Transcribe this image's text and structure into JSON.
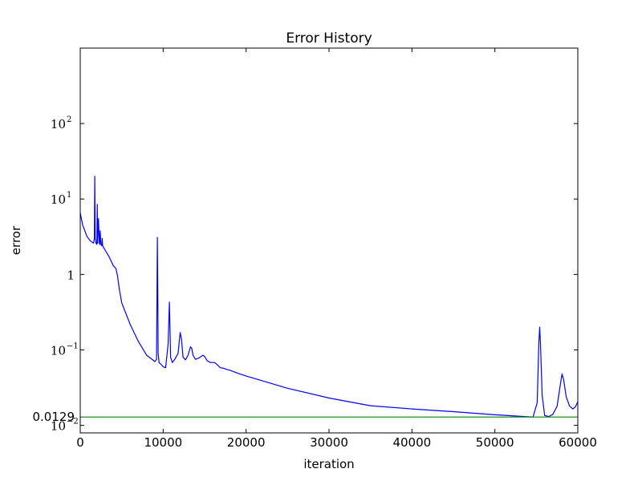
{
  "chart_data": {
    "type": "line",
    "title": "Error History",
    "xlabel": "iteration",
    "ylabel": "error",
    "xlim": [
      0,
      60000
    ],
    "ylim_log10": [
      -2.1,
      3.0
    ],
    "y_scale": "log",
    "grid": false,
    "x_ticks": [
      {
        "value": 0,
        "label": "0"
      },
      {
        "value": 10000,
        "label": "10000"
      },
      {
        "value": 20000,
        "label": "20000"
      },
      {
        "value": 30000,
        "label": "30000"
      },
      {
        "value": 40000,
        "label": "40000"
      },
      {
        "value": 50000,
        "label": "50000"
      },
      {
        "value": 60000,
        "label": "60000"
      }
    ],
    "y_ticks": [
      {
        "value": 0.01,
        "base": "10",
        "exp": "−2",
        "label": ""
      },
      {
        "value": 0.1,
        "base": "10",
        "exp": "−1",
        "label": ""
      },
      {
        "value": 1,
        "base": "",
        "exp": "",
        "label": "1"
      },
      {
        "value": 10,
        "base": "10",
        "exp": "1",
        "label": ""
      },
      {
        "value": 100,
        "base": "10",
        "exp": "2",
        "label": ""
      }
    ],
    "series": [
      {
        "color": "#0000ff",
        "x": [
          0,
          300,
          800,
          1200,
          1600,
          1700,
          1750,
          1800,
          1900,
          2000,
          2050,
          2100,
          2200,
          2300,
          2350,
          2400,
          2500,
          2600,
          2650,
          2700,
          2800,
          3000,
          3500,
          4000,
          4300,
          4500,
          4700,
          5000,
          6000,
          7000,
          8000,
          9000,
          9200,
          9300,
          9350,
          9400,
          9500,
          9700,
          10000,
          10300,
          10600,
          10750,
          10800,
          10900,
          11100,
          11400,
          11800,
          12050,
          12200,
          12400,
          12700,
          13000,
          13300,
          13450,
          13600,
          13900,
          14300,
          14800,
          15000,
          15300,
          15700,
          16200,
          16500,
          16900,
          17300,
          17700,
          18000,
          19000,
          20000,
          25000,
          30000,
          35000,
          40000,
          45000,
          50000,
          54600,
          55100,
          55300,
          55400,
          55500,
          55700,
          56000,
          56500,
          57000,
          57500,
          57900,
          58100,
          58300,
          58600,
          59000,
          59400,
          59700,
          60000
        ],
        "y": [
          6.5,
          4.5,
          3.2,
          2.8,
          2.6,
          3,
          20,
          3,
          2.6,
          2.5,
          8.5,
          2.6,
          5.5,
          2.6,
          2.5,
          3.8,
          2.5,
          2.4,
          3,
          2.4,
          2.3,
          2.1,
          1.7,
          1.3,
          1.2,
          0.95,
          0.65,
          0.42,
          0.22,
          0.13,
          0.085,
          0.07,
          0.075,
          3.1,
          0.6,
          0.09,
          0.068,
          0.065,
          0.06,
          0.058,
          0.12,
          0.43,
          0.25,
          0.08,
          0.068,
          0.075,
          0.09,
          0.17,
          0.14,
          0.08,
          0.074,
          0.085,
          0.11,
          0.105,
          0.085,
          0.075,
          0.078,
          0.085,
          0.082,
          0.072,
          0.068,
          0.068,
          0.064,
          0.058,
          0.057,
          0.055,
          0.054,
          0.049,
          0.045,
          0.031,
          0.023,
          0.0182,
          0.0165,
          0.0152,
          0.0138,
          0.0129,
          0.02,
          0.12,
          0.2,
          0.12,
          0.025,
          0.0135,
          0.0131,
          0.014,
          0.018,
          0.035,
          0.048,
          0.04,
          0.024,
          0.018,
          0.0165,
          0.0175,
          0.0205
        ]
      },
      {
        "color": "#008000",
        "x": [
          0,
          60000
        ],
        "y": [
          0.0129,
          0.0129
        ]
      }
    ],
    "annotations": [
      {
        "text": "0.0129",
        "x": 0,
        "y": 0.0129
      }
    ]
  }
}
